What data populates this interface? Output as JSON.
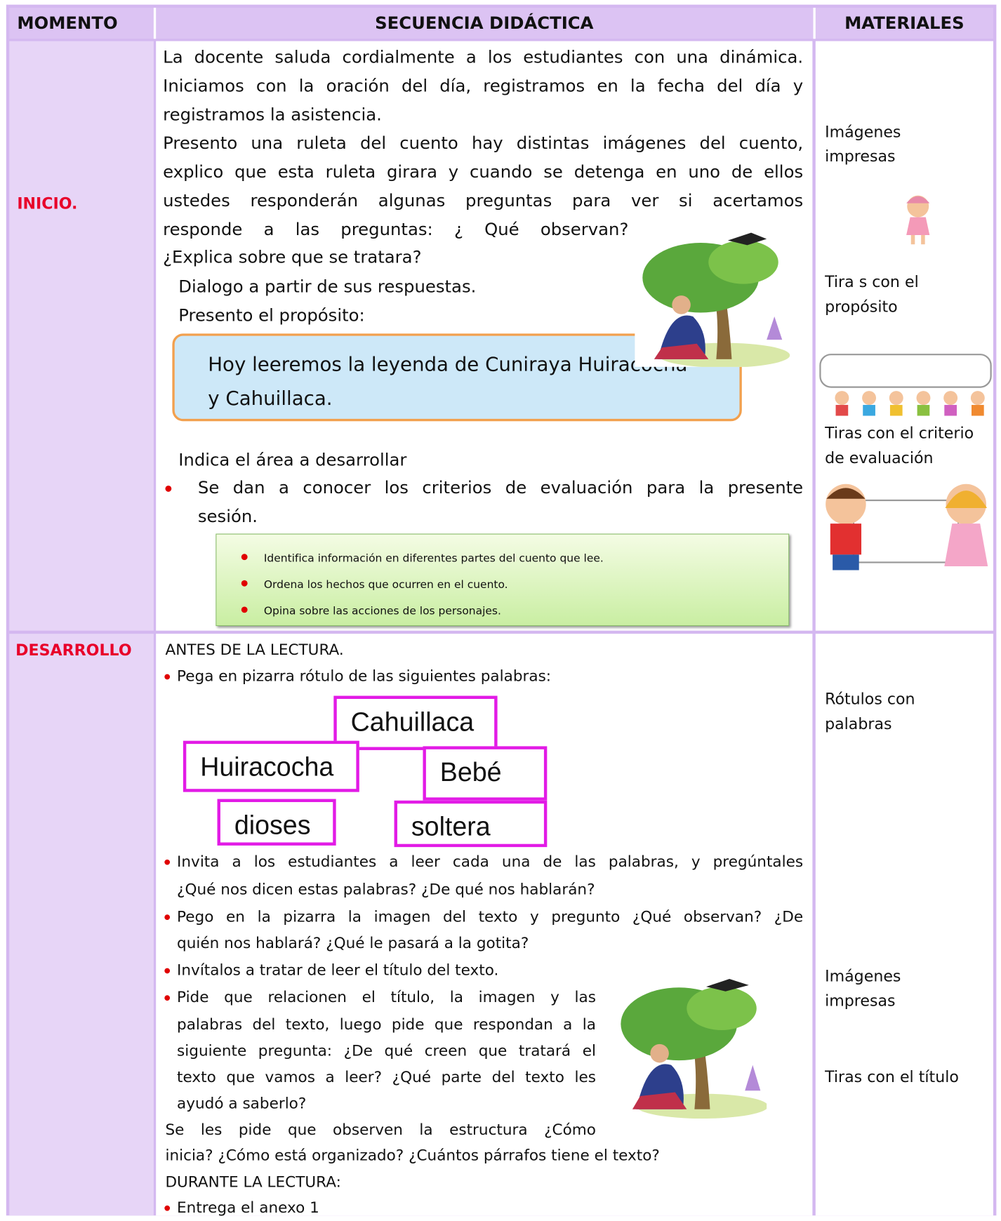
{
  "header": {
    "momento": "MOMENTO",
    "secuencia": "SECUENCIA DIDÁCTICA",
    "materiales": "MATERIALES"
  },
  "rows": [
    {
      "momento": "INICIO.",
      "secuencia": [
        "La docente saluda cordialmente a los estudiantes con una dinámica.",
        "Iniciamos con la oración del día, registramos en la fecha del día y",
        "registramos la asistencia.",
        "Presento una ruleta del cuento hay distintas imágenes del cuento,",
        "explico que esta ruleta girara y cuando se detenga en uno de ellos",
        "ustedes responderán algunas preguntas para ver si acertamos",
        "responde a las preguntas: ¿ Qué observan?",
        "¿Explica sobre que se tratara?",
        "Dialogo a partir de sus respuestas.",
        "Presento el propósito:",
        "Indica el área a desarrollar",
        "Se dan a conocer los criterios de evaluación para la presente",
        "sesión."
      ],
      "proposito": [
        "Hoy leeremos la leyenda de Cuniraya Huiracocha",
        "y Cahuillaca."
      ],
      "criterios": [
        "Identifica información en diferentes partes del cuento que lee.",
        "Ordena los hechos que ocurren en el cuento.",
        "Opina sobre las acciones de los personajes."
      ],
      "materiales": [
        "Imágenes",
        "impresas",
        "Tira s con el",
        "propósito",
        "Tiras con el criterio",
        "de evaluación"
      ]
    },
    {
      "momento": "DESARROLLO",
      "secuencia": [
        "ANTES DE LA LECTURA.",
        "Pega en pizarra rótulo de las siguientes palabras:",
        "Invita a los estudiantes a leer cada una de las palabras, y pregúntales",
        "¿Qué nos dicen estas palabras? ¿De qué nos hablarán?",
        "Pego en la pizarra la imagen del texto y pregunto ¿Qué observan? ¿De",
        "quién nos hablará? ¿Qué le pasará a la gotita?",
        "Invítalos a tratar de leer el título del texto.",
        "Pide que relacionen el título, la imagen y las",
        "palabras del texto, luego pide que respondan a la",
        "siguiente pregunta: ¿De qué creen que tratará el",
        "texto que vamos a leer? ¿Qué parte del texto les",
        "ayudó a saberlo?",
        "Se les pide que observen la estructura ¿Cómo",
        "inicia? ¿Cómo está organizado? ¿Cuántos párrafos tiene el texto?",
        "DURANTE LA LECTURA:",
        "Entrega el anexo 1"
      ],
      "palabras": [
        "Cahuillaca",
        "Huiracocha",
        "Bebé",
        "dioses",
        "soltera"
      ],
      "materiales": [
        "Rótulos con",
        "palabras",
        "Imágenes",
        "impresas",
        "Tiras con el título"
      ]
    }
  ]
}
